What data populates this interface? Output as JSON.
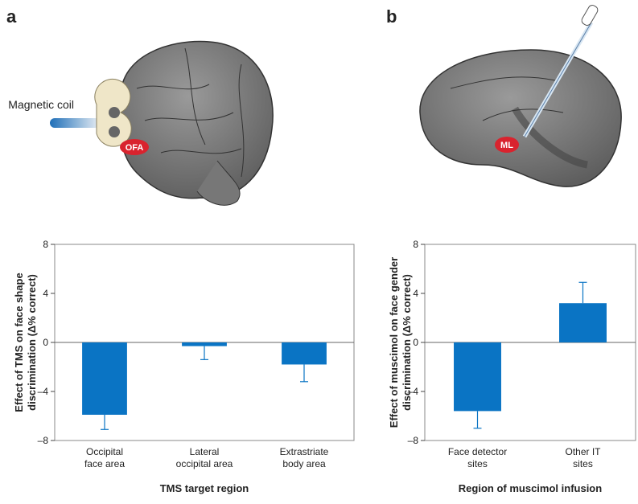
{
  "panels": [
    {
      "label": "a",
      "illustration_labels": [
        "Magnetic coil",
        "OFA"
      ]
    },
    {
      "label": "b",
      "illustration_labels": [
        "ML"
      ]
    }
  ],
  "chart_data": [
    {
      "type": "bar",
      "xlabel": "TMS target region",
      "ylabel": [
        "Effect of TMS on face shape",
        "discrimination (Δ% correct)"
      ],
      "categories": [
        [
          "Occipital",
          "face area"
        ],
        [
          "Lateral",
          "occipital area"
        ],
        [
          "Extrastriate",
          "body area"
        ]
      ],
      "values": [
        -5.9,
        -0.3,
        -1.8
      ],
      "errors": [
        1.2,
        1.1,
        1.4
      ],
      "color": "#0a74c4",
      "ylim": [
        -8,
        8
      ],
      "yticks": [
        {
          "value": -8,
          "label": "–8"
        },
        {
          "value": -4,
          "label": "–4"
        },
        0,
        4,
        8
      ]
    },
    {
      "type": "bar",
      "xlabel": "Region of muscimol infusion",
      "ylabel": [
        "Effect of muscimol on face gender",
        "discrimination (Δ% correct)"
      ],
      "categories": [
        [
          "Face detector",
          "sites"
        ],
        [
          "Other IT",
          "sites"
        ]
      ],
      "values": [
        -5.6,
        3.2
      ],
      "errors": [
        1.4,
        1.7
      ],
      "color": "#0a74c4",
      "ylim": [
        -8,
        8
      ],
      "yticks": [
        {
          "value": -8,
          "label": "–8"
        },
        {
          "value": -4,
          "label": "–4"
        },
        0,
        4,
        8
      ]
    }
  ]
}
